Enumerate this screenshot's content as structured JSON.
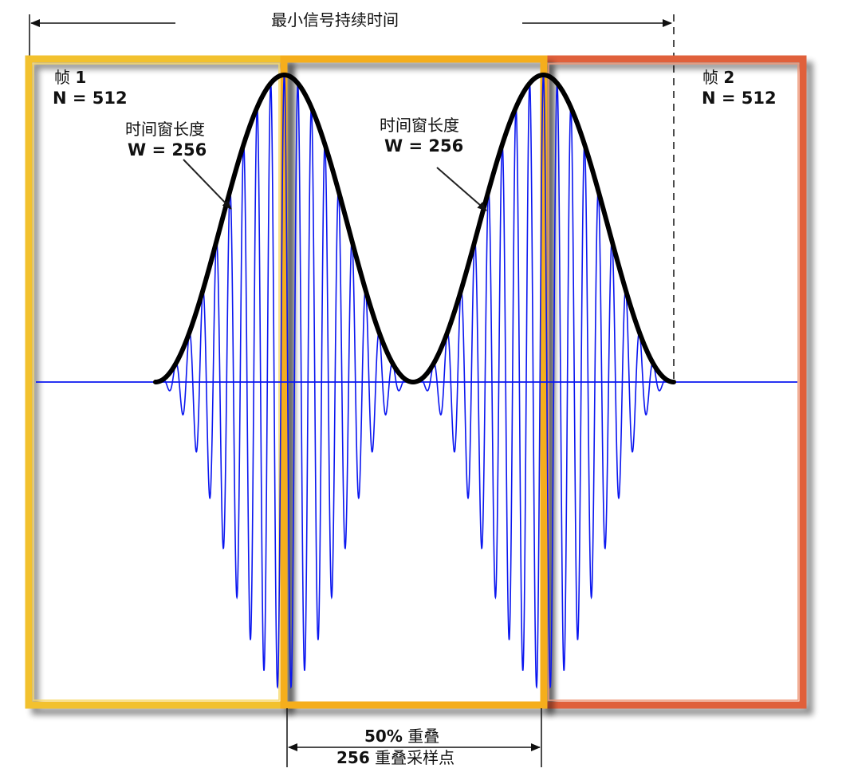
{
  "title": "最小信号持续时间",
  "frame1": {
    "label": "帧",
    "num": "1",
    "n": "N = 512"
  },
  "frame2": {
    "label": "帧",
    "num": "2",
    "n": "N = 512"
  },
  "window1": {
    "label": "时间窗长度",
    "w": "W = 256"
  },
  "window2": {
    "label": "时间窗长度",
    "w": "W = 256"
  },
  "overlap": {
    "pct": "50%",
    "pct_label": "重叠",
    "samples": "256",
    "samples_label": "重叠采样点"
  },
  "colors": {
    "frame1": "#F2C12E",
    "overlap_frame": "#F5AE1C",
    "frame2": "#E0603A",
    "signal": "#0A16F0",
    "envelope": "#000000"
  }
}
